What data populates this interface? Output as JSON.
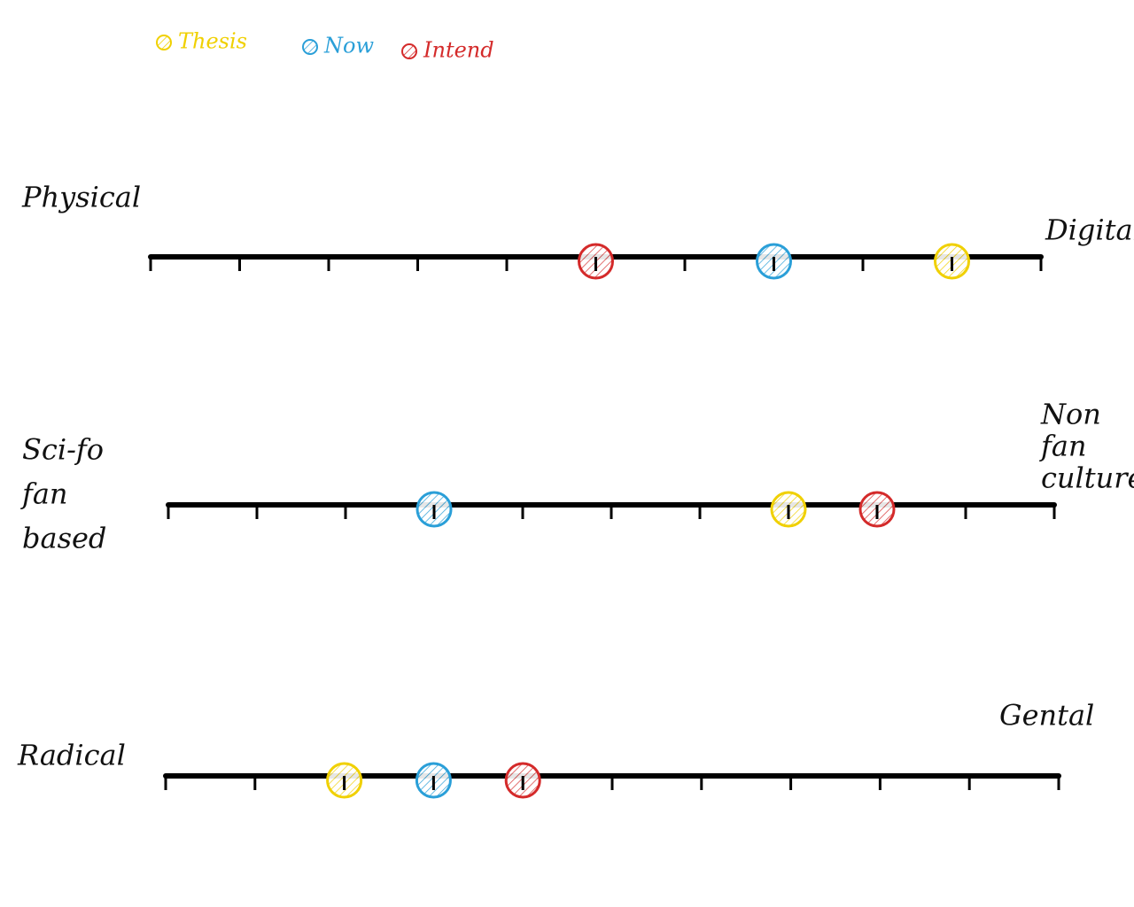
{
  "legend": [
    {
      "name": "Thesis",
      "color": "#f0d000"
    },
    {
      "name": "Now",
      "color": "#2a9fd8"
    },
    {
      "name": "Intend",
      "color": "#d42a2a"
    }
  ],
  "scales": [
    {
      "left": [
        "Physical"
      ],
      "right": [
        "Digital"
      ],
      "range": [
        0,
        10
      ],
      "ticks": [
        0,
        1,
        2,
        3,
        4,
        5,
        6,
        7,
        8,
        9,
        10
      ],
      "values": [
        9,
        7,
        5
      ]
    },
    {
      "left": [
        "Sci-fo",
        "fan",
        "based"
      ],
      "right": [
        "Non",
        "fan",
        "culture"
      ],
      "range": [
        0,
        10
      ],
      "ticks": [
        0,
        1,
        2,
        3,
        4,
        5,
        6,
        7,
        8,
        9,
        10
      ],
      "values": [
        7,
        3,
        8
      ]
    },
    {
      "left": [
        "Radical"
      ],
      "right": [
        "Gental"
      ],
      "range": [
        0,
        10
      ],
      "ticks": [
        0,
        1,
        2,
        3,
        4,
        5,
        6,
        7,
        8,
        9,
        10
      ],
      "values": [
        2,
        3,
        4
      ]
    }
  ]
}
